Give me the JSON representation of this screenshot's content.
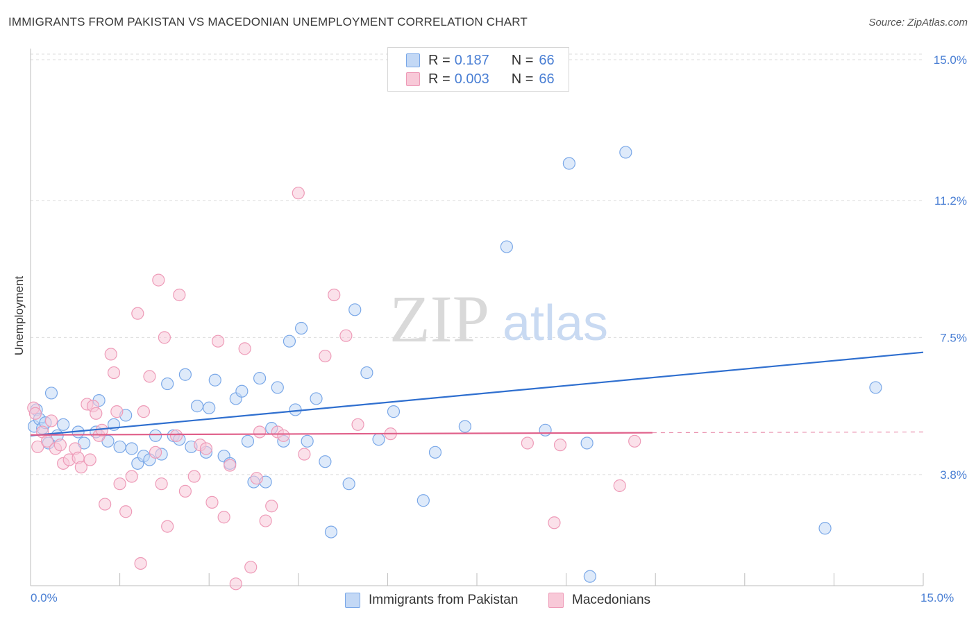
{
  "title": "IMMIGRANTS FROM PAKISTAN VS MACEDONIAN UNEMPLOYMENT CORRELATION CHART",
  "source": "Source: ZipAtlas.com",
  "watermark": {
    "zip": "ZIP",
    "atlas": "atlas"
  },
  "legend": {
    "r_label": "R =",
    "n_label": "N =",
    "rows": [
      {
        "r": "0.187",
        "n": "66"
      },
      {
        "r": "0.003",
        "n": "66"
      }
    ]
  },
  "chart_data": {
    "type": "scatter",
    "title": "IMMIGRANTS FROM PAKISTAN VS MACEDONIAN UNEMPLOYMENT CORRELATION CHART",
    "xlabel": "",
    "ylabel": "Unemployment",
    "xlim": [
      0,
      15
    ],
    "ylim": [
      0.8,
      15.3
    ],
    "x_tick_labels": [
      "0.0%",
      "15.0%"
    ],
    "y_ticks": [
      3.8,
      7.5,
      11.2,
      15.0
    ],
    "y_tick_labels": [
      "3.8%",
      "7.5%",
      "11.2%",
      "15.0%"
    ],
    "grid": true,
    "legend_position": "top-center",
    "series": [
      {
        "name": "Immigrants from Pakistan",
        "color": "#7aa8e8",
        "fill": "#c3d8f5",
        "trend_color": "#2f6fcf",
        "trend": {
          "x": [
            0,
            15
          ],
          "y": [
            4.85,
            7.1
          ]
        },
        "points": [
          [
            0.06,
            5.1
          ],
          [
            0.1,
            5.55
          ],
          [
            0.15,
            5.3
          ],
          [
            0.2,
            5.05
          ],
          [
            0.25,
            5.2
          ],
          [
            0.3,
            4.65
          ],
          [
            0.45,
            4.85
          ],
          [
            0.55,
            5.15
          ],
          [
            0.8,
            4.95
          ],
          [
            0.9,
            4.65
          ],
          [
            0.35,
            6.0
          ],
          [
            1.1,
            4.95
          ],
          [
            1.15,
            5.8
          ],
          [
            1.3,
            4.7
          ],
          [
            1.4,
            5.15
          ],
          [
            1.5,
            4.55
          ],
          [
            1.6,
            5.4
          ],
          [
            1.7,
            4.5
          ],
          [
            1.8,
            4.1
          ],
          [
            1.9,
            4.3
          ],
          [
            2.0,
            4.2
          ],
          [
            2.1,
            4.85
          ],
          [
            2.2,
            4.35
          ],
          [
            2.3,
            6.25
          ],
          [
            2.4,
            4.85
          ],
          [
            2.5,
            4.75
          ],
          [
            2.6,
            6.5
          ],
          [
            2.7,
            4.55
          ],
          [
            2.8,
            5.65
          ],
          [
            2.95,
            4.4
          ],
          [
            3.0,
            5.6
          ],
          [
            3.1,
            6.35
          ],
          [
            3.25,
            4.3
          ],
          [
            3.35,
            4.1
          ],
          [
            3.45,
            5.85
          ],
          [
            3.55,
            6.05
          ],
          [
            3.65,
            4.7
          ],
          [
            3.75,
            3.6
          ],
          [
            3.85,
            6.4
          ],
          [
            3.95,
            3.6
          ],
          [
            4.05,
            5.05
          ],
          [
            4.15,
            6.15
          ],
          [
            4.25,
            4.7
          ],
          [
            4.35,
            7.4
          ],
          [
            4.45,
            5.55
          ],
          [
            4.55,
            7.75
          ],
          [
            4.65,
            4.7
          ],
          [
            4.8,
            5.85
          ],
          [
            4.95,
            4.15
          ],
          [
            5.05,
            2.25
          ],
          [
            5.35,
            3.55
          ],
          [
            5.45,
            8.25
          ],
          [
            5.65,
            6.55
          ],
          [
            5.85,
            4.75
          ],
          [
            6.1,
            5.5
          ],
          [
            6.6,
            3.1
          ],
          [
            6.8,
            4.4
          ],
          [
            7.3,
            5.1
          ],
          [
            8.0,
            9.95
          ],
          [
            8.65,
            5.0
          ],
          [
            9.05,
            12.2
          ],
          [
            9.35,
            4.65
          ],
          [
            9.4,
            1.05
          ],
          [
            10.0,
            12.5
          ],
          [
            13.35,
            2.35
          ],
          [
            14.2,
            6.15
          ]
        ]
      },
      {
        "name": "Macedonians",
        "color": "#ee9bb8",
        "fill": "#f8c9d8",
        "trend_color": "#e0608a",
        "trend": {
          "x": [
            0,
            10.45
          ],
          "y": [
            4.87,
            4.93
          ]
        },
        "trend_ext": {
          "x": [
            10.45,
            15
          ],
          "y": [
            4.93,
            4.95
          ]
        },
        "points": [
          [
            0.05,
            5.6
          ],
          [
            0.08,
            5.45
          ],
          [
            0.12,
            4.55
          ],
          [
            0.2,
            4.95
          ],
          [
            0.28,
            4.7
          ],
          [
            0.35,
            5.25
          ],
          [
            0.42,
            4.5
          ],
          [
            0.5,
            4.6
          ],
          [
            0.55,
            4.1
          ],
          [
            0.65,
            4.2
          ],
          [
            0.75,
            4.5
          ],
          [
            0.8,
            4.25
          ],
          [
            0.85,
            4.0
          ],
          [
            0.95,
            5.7
          ],
          [
            1.0,
            4.2
          ],
          [
            1.05,
            5.65
          ],
          [
            1.1,
            5.45
          ],
          [
            1.15,
            4.85
          ],
          [
            1.2,
            5.0
          ],
          [
            1.25,
            3.0
          ],
          [
            1.35,
            7.05
          ],
          [
            1.4,
            6.55
          ],
          [
            1.45,
            5.5
          ],
          [
            1.5,
            3.55
          ],
          [
            1.6,
            2.8
          ],
          [
            1.7,
            3.75
          ],
          [
            1.8,
            8.15
          ],
          [
            1.85,
            1.4
          ],
          [
            1.9,
            5.5
          ],
          [
            2.0,
            6.45
          ],
          [
            2.1,
            4.4
          ],
          [
            2.15,
            9.05
          ],
          [
            2.2,
            3.55
          ],
          [
            2.25,
            7.5
          ],
          [
            2.3,
            2.4
          ],
          [
            2.45,
            4.85
          ],
          [
            2.5,
            8.65
          ],
          [
            2.6,
            3.35
          ],
          [
            2.75,
            3.75
          ],
          [
            2.85,
            4.6
          ],
          [
            2.95,
            4.5
          ],
          [
            3.05,
            3.05
          ],
          [
            3.15,
            7.4
          ],
          [
            3.25,
            2.65
          ],
          [
            3.35,
            4.05
          ],
          [
            3.45,
            0.85
          ],
          [
            3.6,
            7.2
          ],
          [
            3.7,
            1.3
          ],
          [
            3.8,
            3.7
          ],
          [
            3.85,
            4.95
          ],
          [
            3.95,
            2.55
          ],
          [
            4.05,
            2.95
          ],
          [
            4.15,
            4.95
          ],
          [
            4.25,
            4.85
          ],
          [
            4.5,
            11.4
          ],
          [
            4.6,
            4.35
          ],
          [
            4.95,
            7.0
          ],
          [
            5.1,
            8.65
          ],
          [
            5.3,
            7.55
          ],
          [
            5.5,
            5.15
          ],
          [
            6.05,
            4.9
          ],
          [
            8.35,
            4.65
          ],
          [
            8.8,
            2.5
          ],
          [
            8.9,
            4.6
          ],
          [
            9.9,
            3.5
          ],
          [
            10.15,
            4.7
          ]
        ]
      }
    ]
  }
}
